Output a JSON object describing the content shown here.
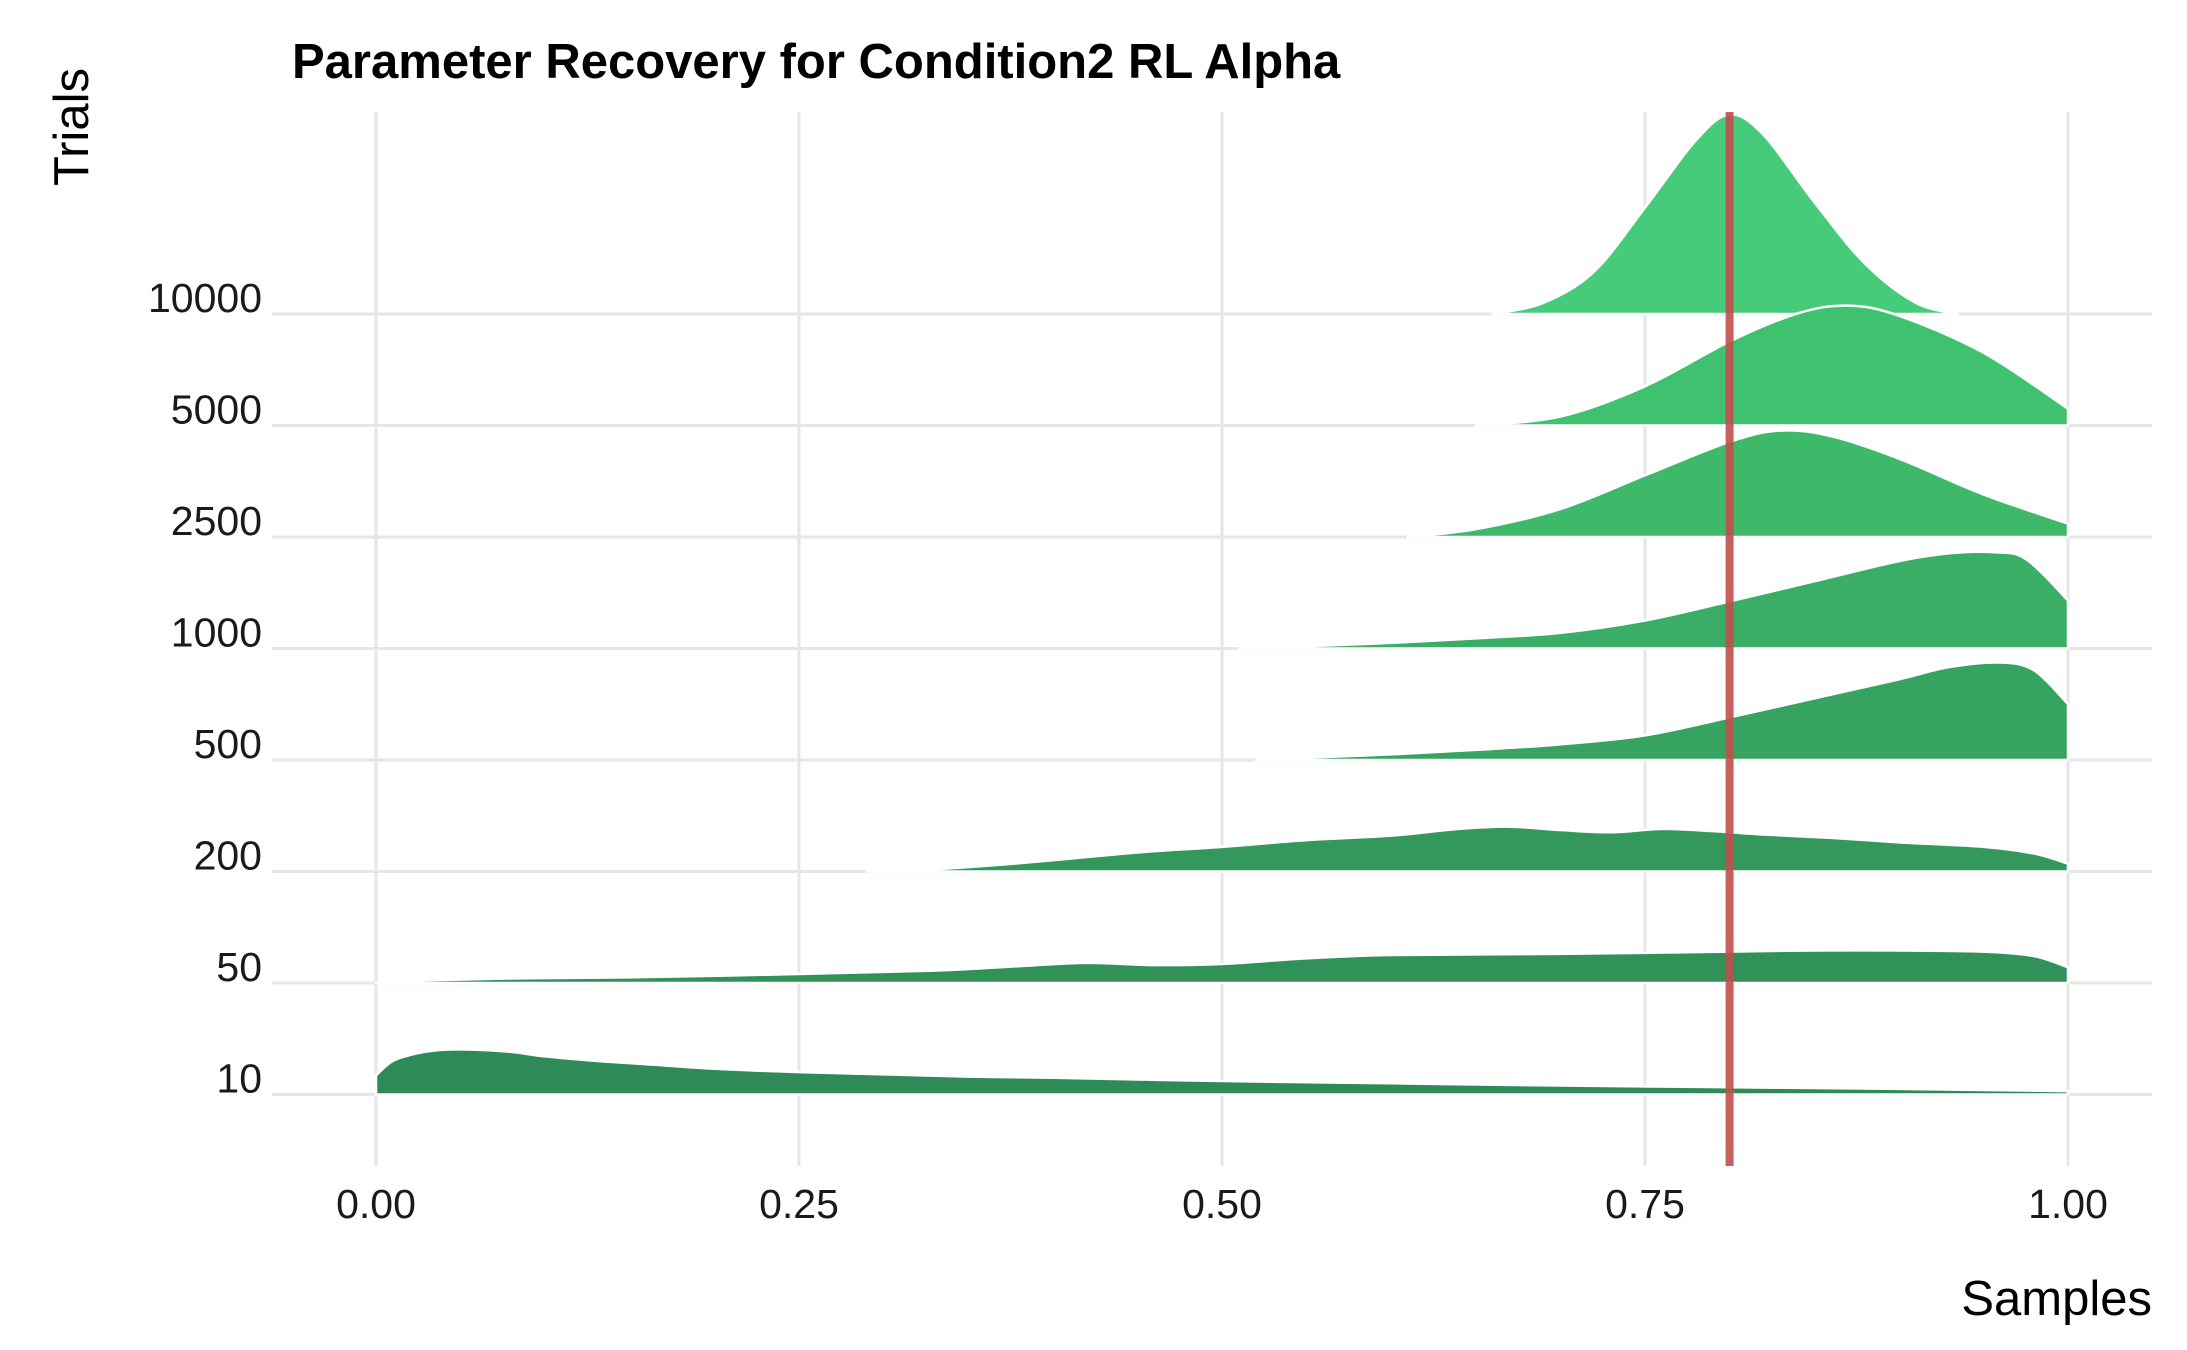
{
  "chart_data": {
    "type": "ridgeline",
    "title": "Parameter Recovery for Condition2 RL Alpha",
    "xlabel": "Samples",
    "ylabel": "Trials",
    "xlim": [
      0,
      1
    ],
    "x_ticks": [
      0,
      0.25,
      0.5,
      0.75,
      1
    ],
    "x_tick_labels": [
      "0.00",
      "0.25",
      "0.50",
      "0.75",
      "1.00"
    ],
    "grid": true,
    "reference_line": {
      "x": 0.8,
      "color": "#c0504d"
    },
    "series": [
      {
        "name": "10",
        "color": "#2e8b57",
        "points": [
          [
            0.0,
            0.17
          ],
          [
            0.01,
            0.3
          ],
          [
            0.025,
            0.37
          ],
          [
            0.04,
            0.4
          ],
          [
            0.06,
            0.4
          ],
          [
            0.08,
            0.38
          ],
          [
            0.1,
            0.34
          ],
          [
            0.13,
            0.3
          ],
          [
            0.16,
            0.27
          ],
          [
            0.2,
            0.23
          ],
          [
            0.25,
            0.2
          ],
          [
            0.3,
            0.18
          ],
          [
            0.35,
            0.16
          ],
          [
            0.4,
            0.15
          ],
          [
            0.5,
            0.12
          ],
          [
            0.6,
            0.1
          ],
          [
            0.7,
            0.08
          ],
          [
            0.8,
            0.065
          ],
          [
            0.9,
            0.05
          ],
          [
            1.0,
            0.03
          ]
        ]
      },
      {
        "name": "50",
        "color": "#309159",
        "points": [
          [
            0.0,
            0.0
          ],
          [
            0.02,
            0.02
          ],
          [
            0.08,
            0.04
          ],
          [
            0.15,
            0.05
          ],
          [
            0.25,
            0.08
          ],
          [
            0.33,
            0.11
          ],
          [
            0.38,
            0.15
          ],
          [
            0.42,
            0.18
          ],
          [
            0.46,
            0.16
          ],
          [
            0.5,
            0.17
          ],
          [
            0.55,
            0.22
          ],
          [
            0.6,
            0.25
          ],
          [
            0.7,
            0.26
          ],
          [
            0.8,
            0.28
          ],
          [
            0.85,
            0.29
          ],
          [
            0.9,
            0.29
          ],
          [
            0.95,
            0.28
          ],
          [
            0.98,
            0.24
          ],
          [
            1.0,
            0.14
          ]
        ]
      },
      {
        "name": "200",
        "color": "#34985c",
        "points": [
          [
            0.29,
            0.0
          ],
          [
            0.32,
            0.01
          ],
          [
            0.36,
            0.05
          ],
          [
            0.4,
            0.1
          ],
          [
            0.45,
            0.17
          ],
          [
            0.5,
            0.22
          ],
          [
            0.55,
            0.28
          ],
          [
            0.6,
            0.32
          ],
          [
            0.64,
            0.38
          ],
          [
            0.67,
            0.4
          ],
          [
            0.7,
            0.37
          ],
          [
            0.73,
            0.35
          ],
          [
            0.76,
            0.38
          ],
          [
            0.79,
            0.36
          ],
          [
            0.82,
            0.33
          ],
          [
            0.86,
            0.3
          ],
          [
            0.9,
            0.26
          ],
          [
            0.95,
            0.22
          ],
          [
            0.98,
            0.16
          ],
          [
            1.0,
            0.07
          ]
        ]
      },
      {
        "name": "500",
        "color": "#37a361",
        "points": [
          [
            0.52,
            0.0
          ],
          [
            0.55,
            0.02
          ],
          [
            0.6,
            0.05
          ],
          [
            0.65,
            0.09
          ],
          [
            0.7,
            0.14
          ],
          [
            0.75,
            0.22
          ],
          [
            0.8,
            0.38
          ],
          [
            0.85,
            0.55
          ],
          [
            0.9,
            0.72
          ],
          [
            0.93,
            0.83
          ],
          [
            0.96,
            0.87
          ],
          [
            0.98,
            0.8
          ],
          [
            1.0,
            0.5
          ]
        ]
      },
      {
        "name": "1000",
        "color": "#3aad66",
        "points": [
          [
            0.51,
            0.0
          ],
          [
            0.55,
            0.02
          ],
          [
            0.6,
            0.05
          ],
          [
            0.65,
            0.09
          ],
          [
            0.7,
            0.14
          ],
          [
            0.75,
            0.25
          ],
          [
            0.8,
            0.42
          ],
          [
            0.85,
            0.6
          ],
          [
            0.9,
            0.78
          ],
          [
            0.93,
            0.85
          ],
          [
            0.955,
            0.86
          ],
          [
            0.975,
            0.8
          ],
          [
            1.0,
            0.43
          ]
        ]
      },
      {
        "name": "2500",
        "color": "#3db969",
        "points": [
          [
            0.61,
            0.0
          ],
          [
            0.65,
            0.07
          ],
          [
            0.7,
            0.25
          ],
          [
            0.75,
            0.55
          ],
          [
            0.8,
            0.85
          ],
          [
            0.83,
            0.95
          ],
          [
            0.86,
            0.9
          ],
          [
            0.9,
            0.7
          ],
          [
            0.95,
            0.38
          ],
          [
            1.0,
            0.12
          ]
        ]
      },
      {
        "name": "5000",
        "color": "#40c16f",
        "points": [
          [
            0.65,
            0.0
          ],
          [
            0.7,
            0.08
          ],
          [
            0.75,
            0.35
          ],
          [
            0.8,
            0.75
          ],
          [
            0.84,
            1.0
          ],
          [
            0.87,
            1.07
          ],
          [
            0.9,
            0.98
          ],
          [
            0.95,
            0.65
          ],
          [
            1.0,
            0.15
          ]
        ]
      },
      {
        "name": "10000",
        "color": "#45cb79",
        "points": [
          [
            0.66,
            0.0
          ],
          [
            0.69,
            0.1
          ],
          [
            0.72,
            0.38
          ],
          [
            0.75,
            0.95
          ],
          [
            0.78,
            1.55
          ],
          [
            0.8,
            1.78
          ],
          [
            0.82,
            1.6
          ],
          [
            0.85,
            1.0
          ],
          [
            0.88,
            0.45
          ],
          [
            0.91,
            0.1
          ],
          [
            0.935,
            0.0
          ]
        ]
      }
    ]
  }
}
